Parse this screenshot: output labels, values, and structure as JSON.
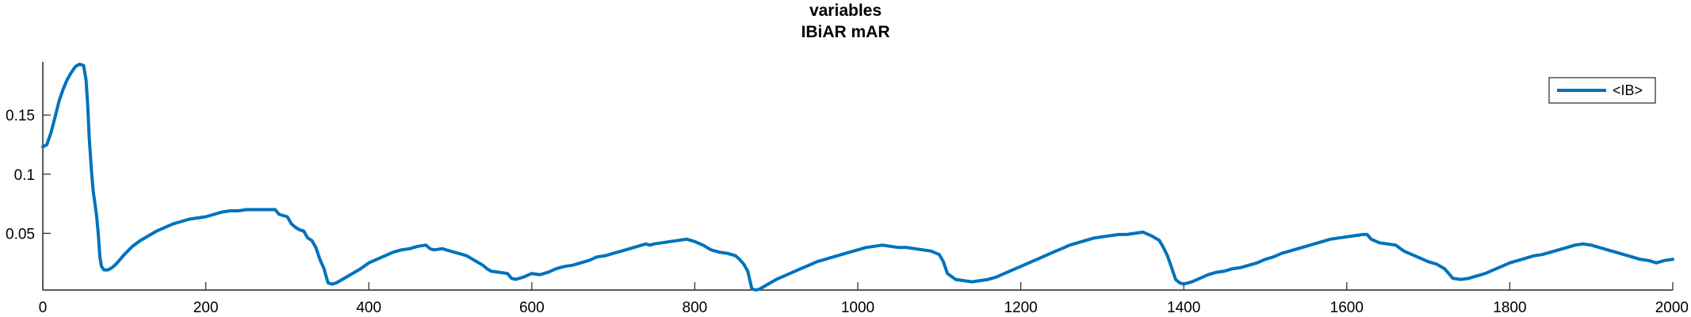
{
  "chart_data": {
    "type": "line",
    "title": "variables",
    "subtitle": "IBiAR mAR",
    "xlabel": "",
    "ylabel": "",
    "xlim": [
      0,
      2000
    ],
    "ylim": [
      0.002,
      0.195
    ],
    "xticks": [
      0,
      200,
      400,
      600,
      800,
      1000,
      1200,
      1400,
      1600,
      1800,
      2000
    ],
    "xtick_labels": [
      "0",
      "200",
      "400",
      "600",
      "800",
      "1000",
      "1200",
      "1400",
      "1600",
      "1800",
      "2000"
    ],
    "yticks": [
      0.05,
      0.1,
      0.15
    ],
    "ytick_labels": [
      "0.05",
      "0.1",
      "0.15"
    ],
    "grid": false,
    "legend_position": "top-right",
    "series": [
      {
        "name": "<IB>",
        "color": "#0072BD",
        "x": [
          0,
          5,
          10,
          15,
          20,
          25,
          30,
          35,
          40,
          45,
          50,
          53,
          55,
          57,
          60,
          62,
          64,
          66,
          68,
          70,
          72,
          75,
          78,
          80,
          85,
          90,
          100,
          110,
          120,
          130,
          140,
          150,
          160,
          170,
          180,
          190,
          200,
          210,
          220,
          230,
          240,
          250,
          260,
          270,
          280,
          285,
          290,
          300,
          305,
          310,
          315,
          320,
          325,
          330,
          335,
          340,
          345,
          350,
          355,
          360,
          370,
          380,
          390,
          400,
          410,
          420,
          430,
          440,
          450,
          460,
          470,
          475,
          480,
          490,
          500,
          510,
          520,
          530,
          540,
          545,
          550,
          560,
          570,
          575,
          580,
          590,
          600,
          610,
          620,
          630,
          640,
          650,
          660,
          670,
          680,
          690,
          700,
          710,
          720,
          730,
          740,
          745,
          750,
          760,
          770,
          780,
          790,
          800,
          810,
          820,
          830,
          840,
          850,
          855,
          860,
          865,
          870,
          875,
          880,
          890,
          900,
          910,
          920,
          930,
          940,
          950,
          960,
          970,
          980,
          990,
          1000,
          1010,
          1020,
          1030,
          1040,
          1050,
          1060,
          1070,
          1080,
          1090,
          1100,
          1105,
          1110,
          1120,
          1130,
          1140,
          1150,
          1160,
          1170,
          1180,
          1190,
          1200,
          1210,
          1220,
          1230,
          1240,
          1250,
          1260,
          1270,
          1280,
          1290,
          1300,
          1310,
          1320,
          1330,
          1340,
          1350,
          1360,
          1370,
          1375,
          1380,
          1385,
          1390,
          1395,
          1400,
          1410,
          1420,
          1430,
          1440,
          1450,
          1460,
          1470,
          1480,
          1490,
          1500,
          1510,
          1520,
          1530,
          1540,
          1550,
          1560,
          1570,
          1580,
          1590,
          1600,
          1610,
          1620,
          1625,
          1630,
          1640,
          1650,
          1660,
          1670,
          1680,
          1690,
          1700,
          1710,
          1720,
          1725,
          1730,
          1740,
          1750,
          1760,
          1770,
          1780,
          1790,
          1800,
          1810,
          1820,
          1830,
          1840,
          1850,
          1860,
          1870,
          1880,
          1890,
          1900,
          1910,
          1920,
          1930,
          1940,
          1950,
          1960,
          1970,
          1975,
          1980,
          1990,
          2000
        ],
        "y": [
          0.123,
          0.125,
          0.135,
          0.148,
          0.162,
          0.172,
          0.18,
          0.186,
          0.191,
          0.193,
          0.192,
          0.18,
          0.16,
          0.13,
          0.1,
          0.085,
          0.075,
          0.065,
          0.05,
          0.03,
          0.022,
          0.019,
          0.019,
          0.019,
          0.021,
          0.024,
          0.032,
          0.039,
          0.044,
          0.048,
          0.052,
          0.055,
          0.058,
          0.06,
          0.062,
          0.063,
          0.064,
          0.066,
          0.068,
          0.069,
          0.069,
          0.07,
          0.07,
          0.07,
          0.07,
          0.07,
          0.066,
          0.064,
          0.058,
          0.055,
          0.053,
          0.052,
          0.046,
          0.044,
          0.038,
          0.028,
          0.02,
          0.008,
          0.007,
          0.008,
          0.012,
          0.016,
          0.02,
          0.025,
          0.028,
          0.031,
          0.034,
          0.036,
          0.037,
          0.039,
          0.04,
          0.037,
          0.036,
          0.037,
          0.035,
          0.033,
          0.031,
          0.027,
          0.023,
          0.02,
          0.018,
          0.017,
          0.016,
          0.012,
          0.011,
          0.013,
          0.016,
          0.015,
          0.017,
          0.02,
          0.022,
          0.023,
          0.025,
          0.027,
          0.03,
          0.031,
          0.033,
          0.035,
          0.037,
          0.039,
          0.041,
          0.04,
          0.041,
          0.042,
          0.043,
          0.044,
          0.045,
          0.043,
          0.04,
          0.036,
          0.034,
          0.033,
          0.031,
          0.028,
          0.024,
          0.018,
          0.003,
          0.002,
          0.003,
          0.007,
          0.011,
          0.014,
          0.017,
          0.02,
          0.023,
          0.026,
          0.028,
          0.03,
          0.032,
          0.034,
          0.036,
          0.038,
          0.039,
          0.04,
          0.039,
          0.038,
          0.038,
          0.037,
          0.036,
          0.035,
          0.032,
          0.026,
          0.016,
          0.011,
          0.01,
          0.009,
          0.01,
          0.011,
          0.013,
          0.016,
          0.019,
          0.022,
          0.025,
          0.028,
          0.031,
          0.034,
          0.037,
          0.04,
          0.042,
          0.044,
          0.046,
          0.047,
          0.048,
          0.049,
          0.049,
          0.05,
          0.051,
          0.048,
          0.044,
          0.038,
          0.031,
          0.021,
          0.011,
          0.008,
          0.007,
          0.009,
          0.012,
          0.015,
          0.017,
          0.018,
          0.02,
          0.021,
          0.023,
          0.025,
          0.028,
          0.03,
          0.033,
          0.035,
          0.037,
          0.039,
          0.041,
          0.043,
          0.045,
          0.046,
          0.047,
          0.048,
          0.049,
          0.049,
          0.045,
          0.042,
          0.041,
          0.04,
          0.035,
          0.032,
          0.029,
          0.026,
          0.024,
          0.02,
          0.016,
          0.012,
          0.011,
          0.012,
          0.014,
          0.016,
          0.019,
          0.022,
          0.025,
          0.027,
          0.029,
          0.031,
          0.032,
          0.034,
          0.036,
          0.038,
          0.04,
          0.041,
          0.04,
          0.038,
          0.036,
          0.034,
          0.032,
          0.03,
          0.028,
          0.027,
          0.026,
          0.025,
          0.027,
          0.028
        ]
      }
    ]
  }
}
